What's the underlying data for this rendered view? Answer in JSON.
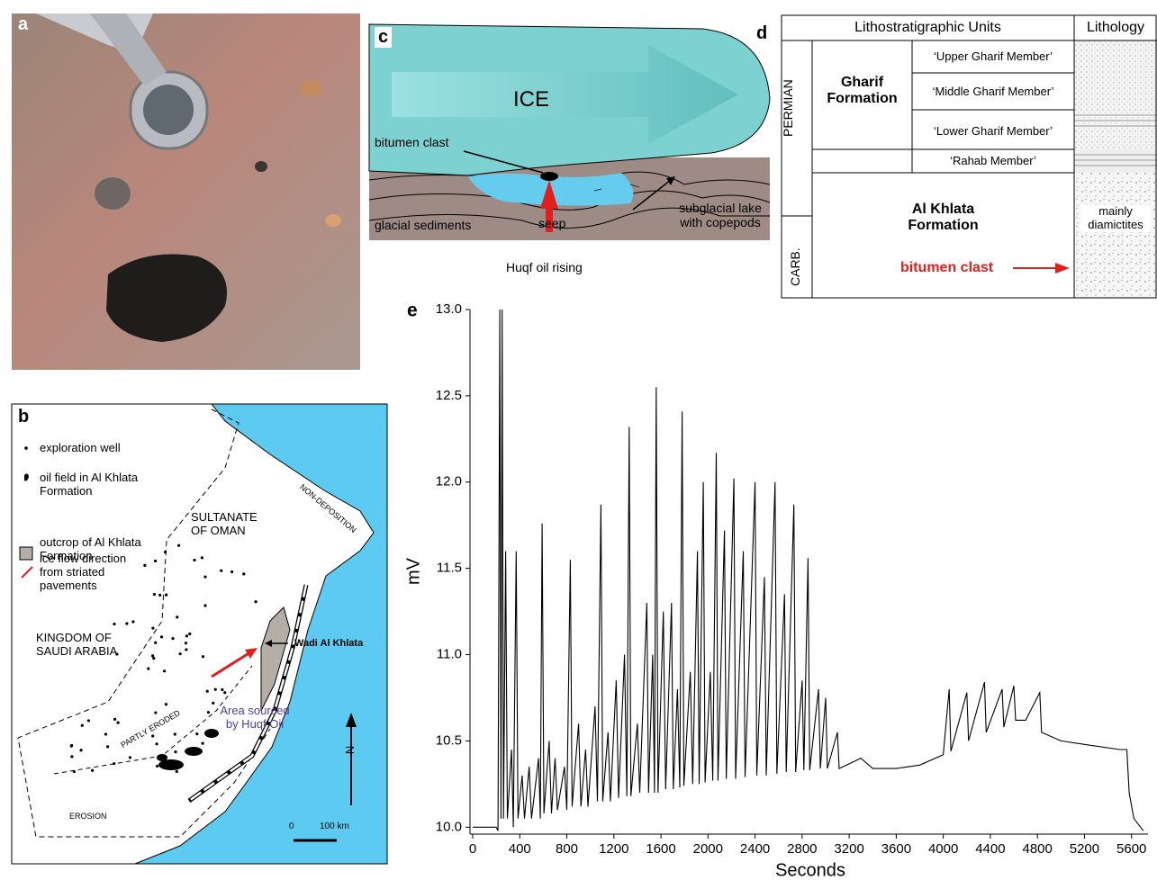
{
  "figure": {
    "a": {
      "label": "a"
    },
    "b": {
      "label": "b",
      "legend": [
        "exploration well",
        "oil field in Al Khlata Formation",
        "outcrop of Al Khlata Formation",
        "ice flow direction from striated pavements"
      ],
      "map_labels": [
        "SULTANATE OF OMAN",
        "KINGDOM OF SAUDI ARABIA",
        "NON-DEPOSITION",
        "PARTLY ERODED",
        "EROSION",
        "Wadi Al Khlata",
        "Area sourced by Huqf Oil"
      ],
      "north": "N",
      "scale": [
        "0",
        "100 km"
      ]
    },
    "c": {
      "label": "c",
      "ice": "ICE",
      "labels": [
        "bitumen clast",
        "seep",
        "glacial sediments",
        "subglacial lake with copepods",
        "Huqf oil rising"
      ]
    },
    "d": {
      "label": "d",
      "header": [
        "Lithostratigraphic Units",
        "Lithology"
      ],
      "periods": [
        "PERMIAN",
        "CARB."
      ],
      "formations": [
        "Gharif Formation",
        "Al Khlata Formation"
      ],
      "members": [
        "‘Upper Gharif Member’",
        "‘Middle Gharif Member’",
        "‘Lower Gharif Member’",
        "‘Rahab Member’"
      ],
      "lithology": "mainly diamictites",
      "clast": "bitumen clast"
    }
  },
  "chart_data": {
    "type": "line",
    "panel_label": "e",
    "x_label": "Seconds",
    "y_label": "mV",
    "color": "#000000",
    "xlim": [
      0,
      5740
    ],
    "ylim": [
      9.96,
      13.0
    ],
    "xticks": [
      0,
      400,
      800,
      1200,
      1600,
      2000,
      2400,
      2800,
      3200,
      3600,
      4000,
      4400,
      4800,
      5200,
      5600
    ],
    "yticks": [
      {
        "value": 10,
        "label": "10.0"
      },
      10.5,
      {
        "value": 11,
        "label": "11.0"
      },
      11.5,
      {
        "value": 12,
        "label": "12.0"
      },
      12.5,
      {
        "value": 13,
        "label": "13.0"
      }
    ],
    "x": [
      0,
      200,
      215,
      230,
      240,
      250,
      262,
      280,
      295,
      330,
      345,
      370,
      385,
      420,
      440,
      480,
      500,
      560,
      575,
      590,
      605,
      650,
      670,
      700,
      720,
      780,
      800,
      830,
      845,
      900,
      920,
      960,
      980,
      1040,
      1060,
      1090,
      1105,
      1150,
      1170,
      1220,
      1240,
      1290,
      1310,
      1330,
      1345,
      1400,
      1420,
      1480,
      1495,
      1530,
      1545,
      1560,
      1575,
      1620,
      1640,
      1690,
      1705,
      1740,
      1760,
      1780,
      1795,
      1850,
      1870,
      1910,
      1925,
      1960,
      1975,
      2020,
      2040,
      2070,
      2085,
      2140,
      2155,
      2220,
      2235,
      2300,
      2315,
      2400,
      2415,
      2480,
      2495,
      2570,
      2585,
      2650,
      2665,
      2730,
      2745,
      2800,
      2815,
      2850,
      2865,
      2940,
      2955,
      3000,
      3015,
      3100,
      3115,
      3300,
      3400,
      3600,
      3800,
      4000,
      4050,
      4065,
      4200,
      4215,
      4350,
      4365,
      4500,
      4515,
      4600,
      4615,
      4700,
      4820,
      4835,
      5000,
      5200,
      5500,
      5560,
      5580,
      5620,
      5700
    ],
    "values": [
      10.0,
      10.0,
      9.98,
      13.0,
      10.05,
      13.0,
      10.05,
      11.6,
      10.05,
      10.45,
      10.0,
      11.6,
      10.05,
      10.3,
      10.05,
      10.35,
      10.05,
      10.4,
      10.05,
      11.76,
      10.08,
      10.5,
      10.08,
      10.4,
      10.1,
      10.35,
      10.1,
      11.55,
      10.12,
      10.6,
      10.12,
      10.45,
      10.12,
      10.7,
      10.15,
      11.87,
      10.15,
      10.55,
      10.15,
      10.85,
      10.17,
      11.0,
      10.18,
      12.32,
      10.18,
      10.6,
      10.2,
      11.3,
      10.2,
      11.0,
      10.2,
      12.55,
      10.2,
      11.25,
      10.22,
      11.3,
      10.22,
      10.8,
      10.23,
      12.41,
      10.24,
      10.9,
      10.25,
      11.6,
      10.25,
      12.0,
      10.26,
      10.9,
      10.27,
      12.17,
      10.27,
      11.72,
      10.28,
      12.02,
      10.28,
      11.6,
      10.29,
      12.0,
      10.3,
      11.45,
      10.3,
      12.0,
      10.31,
      11.35,
      10.32,
      11.87,
      10.32,
      10.85,
      10.33,
      11.56,
      10.33,
      10.8,
      10.34,
      10.75,
      10.34,
      10.55,
      10.34,
      10.4,
      10.34,
      10.34,
      10.36,
      10.42,
      10.8,
      10.44,
      10.78,
      10.5,
      10.84,
      10.55,
      10.8,
      10.58,
      10.82,
      10.62,
      10.62,
      10.78,
      10.55,
      10.5,
      10.48,
      10.45,
      10.45,
      10.2,
      10.05,
      9.98
    ]
  }
}
